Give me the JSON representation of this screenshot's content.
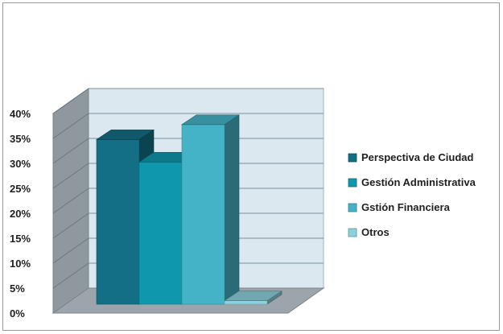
{
  "chart_data": {
    "type": "bar",
    "title": "",
    "xlabel": "",
    "ylabel": "",
    "ylim": [
      0,
      40
    ],
    "y_ticks": [
      "0%",
      "5%",
      "10%",
      "15%",
      "20%",
      "25%",
      "30%",
      "35%",
      "40%"
    ],
    "grid": true,
    "legend_position": "right",
    "series": [
      {
        "name": "Perspectiva de Ciudad",
        "value": 33,
        "color": "#136f86"
      },
      {
        "name": "Gestión Administrativa",
        "value": 28.5,
        "color": "#0f98ad"
      },
      {
        "name": "Gstión Financiera",
        "value": 36,
        "color": "#45b3c7"
      },
      {
        "name": "Otros",
        "value": 0.7,
        "color": "#8cd1dd"
      }
    ]
  }
}
